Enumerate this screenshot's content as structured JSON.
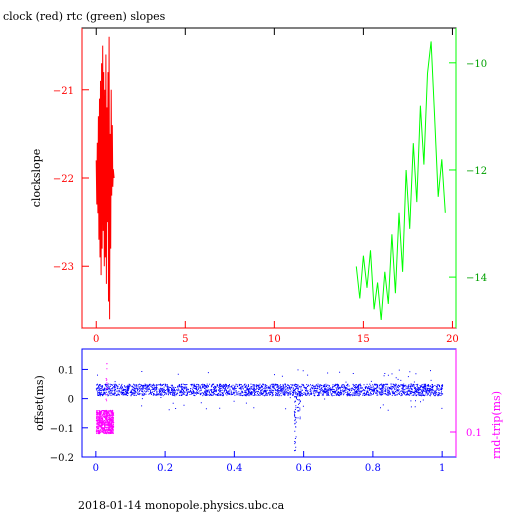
{
  "title": "clock (red) rtc (green) slopes",
  "footer": "2018-01-14 monopole.physics.ubc.ca",
  "chart_data": [
    {
      "type": "line",
      "panel": "top",
      "ylabel": "clockslope",
      "xlim": [
        -0.8,
        20.2
      ],
      "left_ylim": [
        -23.7,
        -20.3
      ],
      "right_ylim": [
        -14.95,
        -9.35
      ],
      "x_ticks": [
        0,
        5,
        10,
        15,
        20
      ],
      "left_y_ticks": [
        -21,
        -22,
        -23
      ],
      "right_y_ticks": [
        -10,
        -12,
        -14
      ],
      "colors": {
        "axis": "#000000",
        "left_axis": "#ff0000",
        "bottom_axis": "#ff0000",
        "right_axis": "#00ff00",
        "series_clock": "#ff0000",
        "series_rtc": "#00ff00"
      },
      "series": [
        {
          "name": "clock",
          "axis": "left",
          "x": [
            0.0,
            0.03,
            0.06,
            0.09,
            0.12,
            0.15,
            0.18,
            0.21,
            0.24,
            0.27,
            0.3,
            0.33,
            0.36,
            0.39,
            0.42,
            0.45,
            0.48,
            0.51,
            0.54,
            0.57,
            0.6,
            0.63,
            0.66,
            0.69,
            0.72,
            0.75,
            0.78,
            0.81,
            0.84,
            0.87,
            0.9,
            0.93,
            0.96,
            1.0
          ],
          "y": [
            -21.8,
            -22.3,
            -21.6,
            -22.4,
            -21.3,
            -22.7,
            -21.1,
            -22.9,
            -20.9,
            -23.1,
            -20.7,
            -22.8,
            -20.5,
            -22.6,
            -20.8,
            -23.0,
            -21.0,
            -22.9,
            -20.6,
            -23.2,
            -21.2,
            -22.5,
            -20.8,
            -23.4,
            -20.4,
            -23.6,
            -21.5,
            -22.8,
            -21.0,
            -22.2,
            -21.4,
            -22.1,
            -21.9,
            -22.0
          ]
        },
        {
          "name": "rtc",
          "axis": "right",
          "x": [
            14.6,
            14.8,
            15.0,
            15.2,
            15.4,
            15.6,
            15.8,
            16.0,
            16.2,
            16.4,
            16.6,
            16.8,
            17.0,
            17.2,
            17.4,
            17.6,
            17.8,
            18.0,
            18.2,
            18.4,
            18.6,
            18.8,
            19.0,
            19.2,
            19.4,
            19.6
          ],
          "y": [
            -13.8,
            -14.4,
            -13.6,
            -14.2,
            -13.5,
            -14.6,
            -14.1,
            -14.8,
            -13.9,
            -14.5,
            -13.2,
            -14.3,
            -12.8,
            -13.9,
            -12.0,
            -13.1,
            -11.5,
            -12.6,
            -10.8,
            -11.9,
            -10.2,
            -9.6,
            -11.0,
            -12.5,
            -11.8,
            -12.8
          ]
        }
      ]
    },
    {
      "type": "scatter",
      "panel": "bottom",
      "ylabel": "offset(ms)",
      "right_ylabel": "rnd-trip(ms)",
      "xlim": [
        -0.04,
        1.04
      ],
      "ylim": [
        -0.2,
        0.17
      ],
      "x_ticks": [
        0,
        0.2,
        0.4,
        0.6,
        0.8,
        1
      ],
      "x_tick_labels": [
        "0",
        "0.2",
        "0.4",
        "0.6",
        "0.8",
        "1"
      ],
      "y_ticks": [
        0.1,
        0,
        -0.1,
        -0.2
      ],
      "y_tick_labels": [
        "0.1",
        "0",
        "−0.1",
        "−0.2"
      ],
      "right_y_ticks": [
        0.1
      ],
      "right_y_tick_labels": [
        "0.1"
      ],
      "colors": {
        "axis": "#0000ff",
        "right_axis": "#ff00ff",
        "offset": "#0000ff",
        "roundtrip": "#ff00ff"
      },
      "series": [
        {
          "name": "offset",
          "band_center": 0.03,
          "band_halfwidth": 0.02,
          "x_range": [
            0,
            1
          ],
          "spike_x": 0.575,
          "spike_min": -0.19,
          "dip_x": 0.585,
          "dip_min": -0.08
        },
        {
          "name": "roundtrip",
          "x_range": [
            0,
            0.05
          ],
          "level": -0.08,
          "spread": 0.04,
          "spike_x": 0.03,
          "spike_max": 0.14
        }
      ]
    }
  ]
}
